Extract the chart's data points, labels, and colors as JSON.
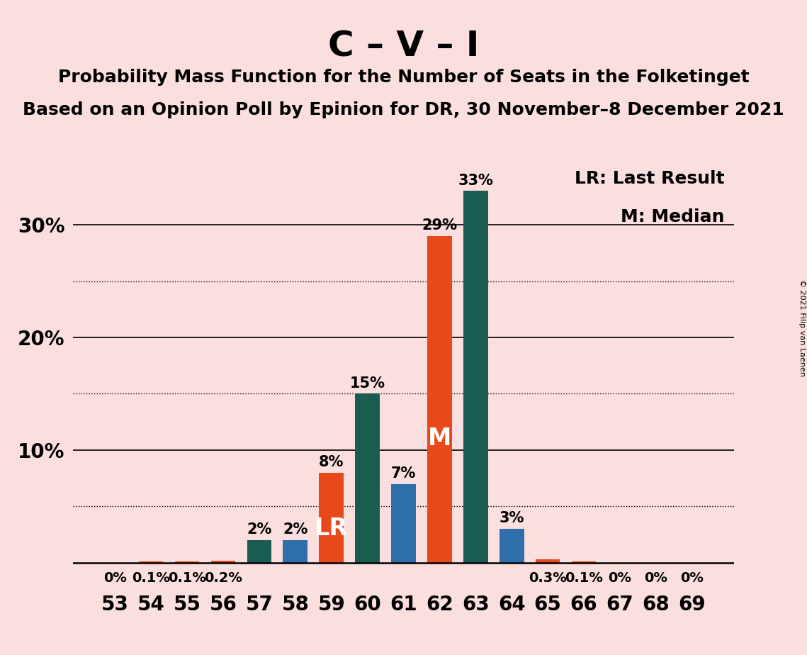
{
  "title": "C – V – I",
  "subtitle1": "Probability Mass Function for the Number of Seats in the Folketinget",
  "subtitle2": "Based on an Opinion Poll by Epinion for DR, 30 November–8 December 2021",
  "copyright": "© 2021 Filip van Laenen",
  "legend_lr": "LR: Last Result",
  "legend_m": "M: Median",
  "seats": [
    53,
    54,
    55,
    56,
    57,
    58,
    59,
    60,
    61,
    62,
    63,
    64,
    65,
    66,
    67,
    68,
    69
  ],
  "values": [
    0.0,
    0.1,
    0.1,
    0.2,
    2.0,
    2.0,
    8.0,
    15.0,
    7.0,
    29.0,
    33.0,
    3.0,
    0.3,
    0.1,
    0.0,
    0.0,
    0.0
  ],
  "value_labels": [
    "0%",
    "0.1%",
    "0.1%",
    "0.2%",
    "2%",
    "2%",
    "8%",
    "15%",
    "7%",
    "29%",
    "33%",
    "3%",
    "0.3%",
    "0.1%",
    "0%",
    "0%",
    "0%"
  ],
  "bar_colors": [
    "#E8491A",
    "#E8491A",
    "#E8491A",
    "#E8491A",
    "#1A5C52",
    "#2E6EAA",
    "#E8491A",
    "#1A5C52",
    "#2E6EAA",
    "#E8491A",
    "#1A5C52",
    "#2E6EAA",
    "#E8491A",
    "#E8491A",
    "#E8491A",
    "#E8491A",
    "#E8491A"
  ],
  "inside_labels": {
    "59": "LR",
    "62": "M"
  },
  "background_color": "#FBDEDE",
  "ylim_max": 36,
  "solid_gridlines": [
    10,
    20,
    30
  ],
  "dotted_gridlines": [
    5,
    15,
    25
  ],
  "title_fontsize": 36,
  "subtitle_fontsize": 18,
  "bar_label_fontsize": 15,
  "axis_tick_fontsize": 20,
  "legend_fontsize": 18
}
